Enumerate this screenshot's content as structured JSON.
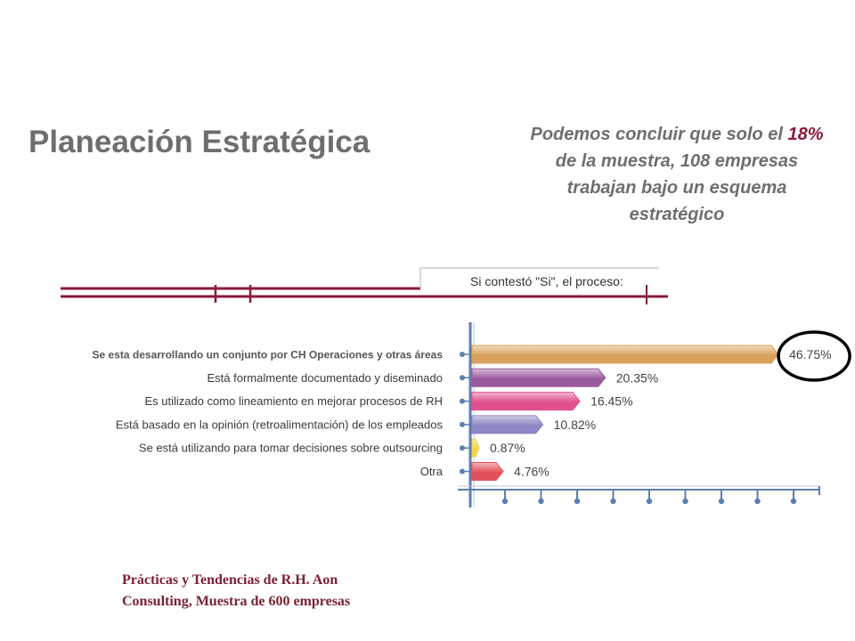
{
  "slide": {
    "title": "Planeación Estratégica",
    "conclusion": {
      "part1": "Podemos concluir que solo el ",
      "highlight": "18%",
      "part2": " de la muestra, 108 empresas trabajan bajo un esquema estratégico"
    },
    "source_line1": "Prácticas y Tendencias de R.H. Aon",
    "source_line2": "Consulting, Muestra de 600 empresas"
  },
  "colors": {
    "accent_line": "#8b1a3a",
    "axis": "#5b7fb0",
    "circle": "#000000"
  },
  "chart_data": {
    "type": "bar",
    "orientation": "horizontal",
    "heading": "Si contestó \"Si\", el proceso:",
    "categories": [
      "Se esta desarrollando un conjunto por CH Operaciones y otras áreas",
      "Está formalmente documentado y diseminado",
      "Es utilizado como lineamiento en mejorar procesos de RH",
      "Está basado en la opinión (retroalimentación) de los empleados",
      "Se está utilizando para tomar decisiones sobre outsourcing",
      "Otra"
    ],
    "values": [
      46.75,
      20.35,
      16.45,
      10.82,
      0.87,
      4.76
    ],
    "value_labels": [
      "46.75%",
      "20.35%",
      "16.45%",
      "10.82%",
      "0.87%",
      "4.76%"
    ],
    "bar_colors": [
      "#d9a25c",
      "#9a5a9e",
      "#e0508c",
      "#8c86c4",
      "#f4d24a",
      "#e2505a"
    ],
    "xlim": [
      0,
      50
    ],
    "highlighted_category": "Se esta desarrollando un conjunto por CH Operaciones y otras áreas",
    "grid": false
  }
}
